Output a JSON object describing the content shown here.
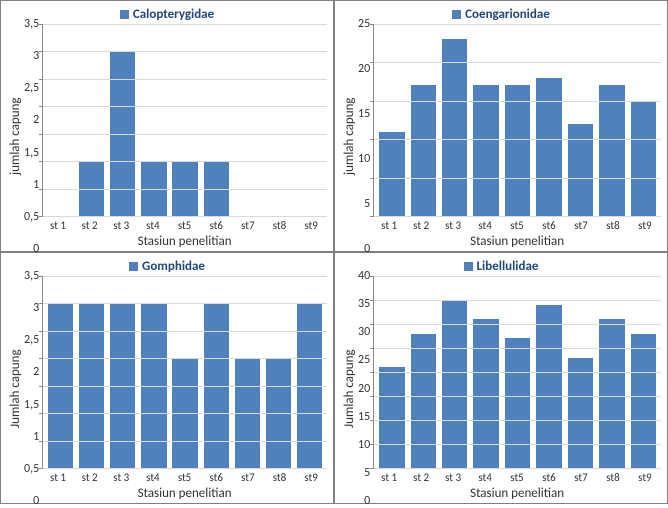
{
  "colors": {
    "bar": "#4f81bd",
    "legend_text": "#1f497d",
    "grid": "#d9d9d9",
    "axis": "#888888",
    "panel_border": "#7f7f7f"
  },
  "panels": [
    {
      "id": "calopterygidae",
      "legend": "Calopterygidae",
      "ylabel": "jumlah capung",
      "xlabel": "Stasiun  penelitian",
      "ymax": 3.5,
      "yticks": [
        "3,5",
        "3",
        "2,5",
        "2",
        "1,5",
        "1",
        "0,5",
        "0"
      ],
      "categories": [
        "st 1",
        "st 2",
        "st 3",
        "st4",
        "st5",
        "st6",
        "st7",
        "st8",
        "st9"
      ],
      "values": [
        0,
        1,
        3,
        1,
        1,
        1,
        0,
        0,
        0
      ]
    },
    {
      "id": "coengarionidae",
      "legend": "Coengarionidae",
      "ylabel": "jumlah capung",
      "xlabel": "Stasiun penelitian",
      "ymax": 25,
      "yticks": [
        "25",
        "20",
        "15",
        "10",
        "5",
        "0"
      ],
      "categories": [
        "st 1",
        "st 2",
        "st 3",
        "st4",
        "st5",
        "st6",
        "st7",
        "st8",
        "st9"
      ],
      "values": [
        11,
        17,
        23,
        17,
        17,
        18,
        12,
        17,
        15
      ]
    },
    {
      "id": "gomphidae",
      "legend": "Gomphidae",
      "ylabel": "Jumlah capung",
      "xlabel": "Stasiun penelitian",
      "ymax": 3.5,
      "yticks": [
        "3,5",
        "3",
        "2,5",
        "2",
        "1,5",
        "1",
        "0,5",
        "0"
      ],
      "categories": [
        "st 1",
        "st 2",
        "st 3",
        "st4",
        "st5",
        "st6",
        "st7",
        "st8",
        "st9"
      ],
      "values": [
        3,
        3,
        3,
        3,
        2,
        3,
        2,
        2,
        3
      ]
    },
    {
      "id": "libellulidae",
      "legend": "Libellulidae",
      "ylabel": "Jumlah capung",
      "xlabel": "Stasiun penelitian",
      "ymax": 40,
      "yticks": [
        "40",
        "35",
        "30",
        "25",
        "20",
        "15",
        "10",
        "5",
        "0"
      ],
      "categories": [
        "st 1",
        "st 2",
        "st 3",
        "st4",
        "st5",
        "st6",
        "st7",
        "st8",
        "st9"
      ],
      "values": [
        21,
        28,
        35,
        31,
        27,
        34,
        23,
        31,
        28
      ]
    }
  ]
}
